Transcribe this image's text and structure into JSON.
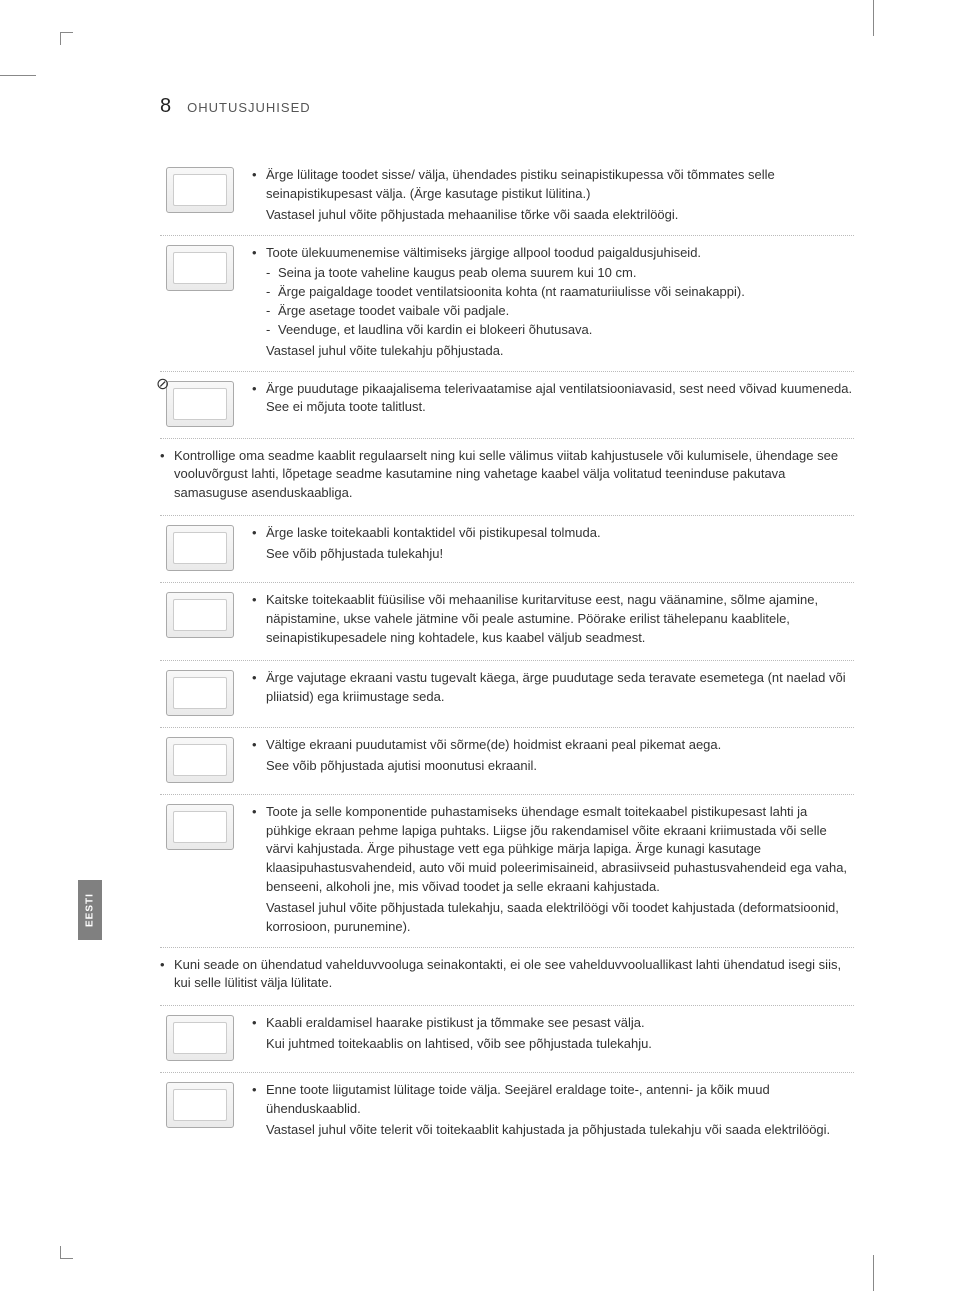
{
  "header": {
    "page_number": "8",
    "section_title": "OHUTUSJUHISED"
  },
  "side_tab": "EESTI",
  "colors": {
    "text": "#333333",
    "muted": "#555555",
    "page_bg": "#ffffff",
    "dotted_rule": "#bbbbbb",
    "tab_bg": "#808080",
    "tab_fg": "#ffffff"
  },
  "typography": {
    "body_fontsize_pt": 10,
    "header_num_fontsize_pt": 15,
    "section_title_fontsize_pt": 10,
    "line_height": 1.45
  },
  "rows": [
    {
      "icon": "plug-switch-icon",
      "bullets": [
        "Ärge lülitage toodet sisse/ välja, ühendades pistiku seinapistikupessa või tõmmates selle seinapistikupesast välja. (Ärge kasutage pistikut lülitina.)"
      ],
      "trailing": "Vastasel juhul võite põhjustada mehaanilise tõrke või saada elektrilöögi."
    },
    {
      "icon": "ventilation-icon",
      "bullets": [
        "Toote ülekuumenemise vältimiseks järgige allpool toodud paigaldusjuhiseid."
      ],
      "dashes": [
        "Seina ja toote vaheline kaugus peab olema suurem kui 10 cm.",
        "Ärge paigaldage toodet ventilatsioonita kohta (nt raamaturiiulisse või seinakappi).",
        "Ärge asetage toodet vaibale või padjale.",
        "Veenduge, et laudlina või kardin ei blokeeri õhutusava."
      ],
      "trailing": "Vastasel juhul võite tulekahju põhjustada."
    },
    {
      "icon": "hot-vent-icon",
      "prohibit": true,
      "bullets": [
        "Ärge puudutage pikaajalisema telerivaatamise ajal ventilatsiooniavasid, sest need võivad kuumeneda. See ei mõjuta toote talitlust."
      ]
    },
    {
      "full": true,
      "bullets": [
        "Kontrollige oma seadme kaablit regulaarselt ning kui selle välimus viitab kahjustusele või kulumisele, ühendage see vooluvõrgust lahti, lõpetage seadme kasutamine ning vahetage kaabel välja volitatud teeninduse pakutava samasuguse asenduskaabliga."
      ]
    },
    {
      "icon": "dust-plug-icon",
      "bullets": [
        "Ärge laske toitekaabli kontaktidel või pistikupesal tolmuda."
      ],
      "trailing": "See võib põhjustada tulekahju!"
    },
    {
      "icon": "cable-abuse-icon",
      "bullets": [
        "Kaitske toitekaablit füüsilise või mehaanilise kuritarvituse eest, nagu väänamine, sõlme ajamine, näpistamine, ukse vahele jätmine või peale astumine. Pöörake erilist tähelepanu kaablitele, seinapistikupesadele ning kohtadele, kus kaabel väljub seadmest."
      ]
    },
    {
      "icon": "screen-press-icon",
      "bullets": [
        "Ärge vajutage ekraani vastu tugevalt käega, ärge puudutage seda teravate esemetega (nt naelad või pliiatsid) ega kriimustage seda."
      ]
    },
    {
      "icon": "finger-screen-icon",
      "bullets": [
        "Vältige ekraani puudutamist või sõrme(de) hoidmist ekraani peal pikemat aega."
      ],
      "trailing": "See võib põhjustada ajutisi moonutusi ekraanil."
    },
    {
      "icon": "cleaning-icon",
      "bullets": [
        "Toote ja selle komponentide puhastamiseks ühendage esmalt toitekaabel pistikupesast lahti ja pühkige ekraan pehme lapiga puhtaks. Liigse jõu rakendamisel võite ekraani kriimustada või selle värvi kahjustada. Ärge pihustage vett ega pühkige märja lapiga. Ärge kunagi kasutage klaasipuhastusvahendeid, auto või muid poleerimisaineid, abrasiivseid puhastusvahendeid ega vaha, benseeni, alkoholi jne, mis võivad toodet ja selle ekraani kahjustada."
      ],
      "trailing": "Vastasel juhul võite põhjustada tulekahju, saada elektrilöögi või toodet kahjustada (deformatsioonid, korrosioon, purunemine)."
    },
    {
      "full": true,
      "bullets": [
        "Kuni seade on ühendatud vahelduvvooluga seinakontakti, ei ole see vahelduvvooluallikast lahti ühendatud isegi siis, kui selle lülitist välja lülitate."
      ]
    },
    {
      "icon": "unplug-grip-icon",
      "bullets": [
        "Kaabli eraldamisel haarake pistikust ja tõmmake see pesast välja."
      ],
      "trailing": "Kui juhtmed toitekaablis on lahtised, võib see põhjustada tulekahju."
    },
    {
      "icon": "move-unplug-icon",
      "bullets": [
        "Enne toote liigutamist lülitage toide välja. Seejärel eraldage toite-, antenni- ja kõik muud ühenduskaablid."
      ],
      "trailing": "Vastasel juhul võite telerit või toitekaablit kahjustada ja põhjustada tulekahju või saada elektrilöögi."
    }
  ]
}
